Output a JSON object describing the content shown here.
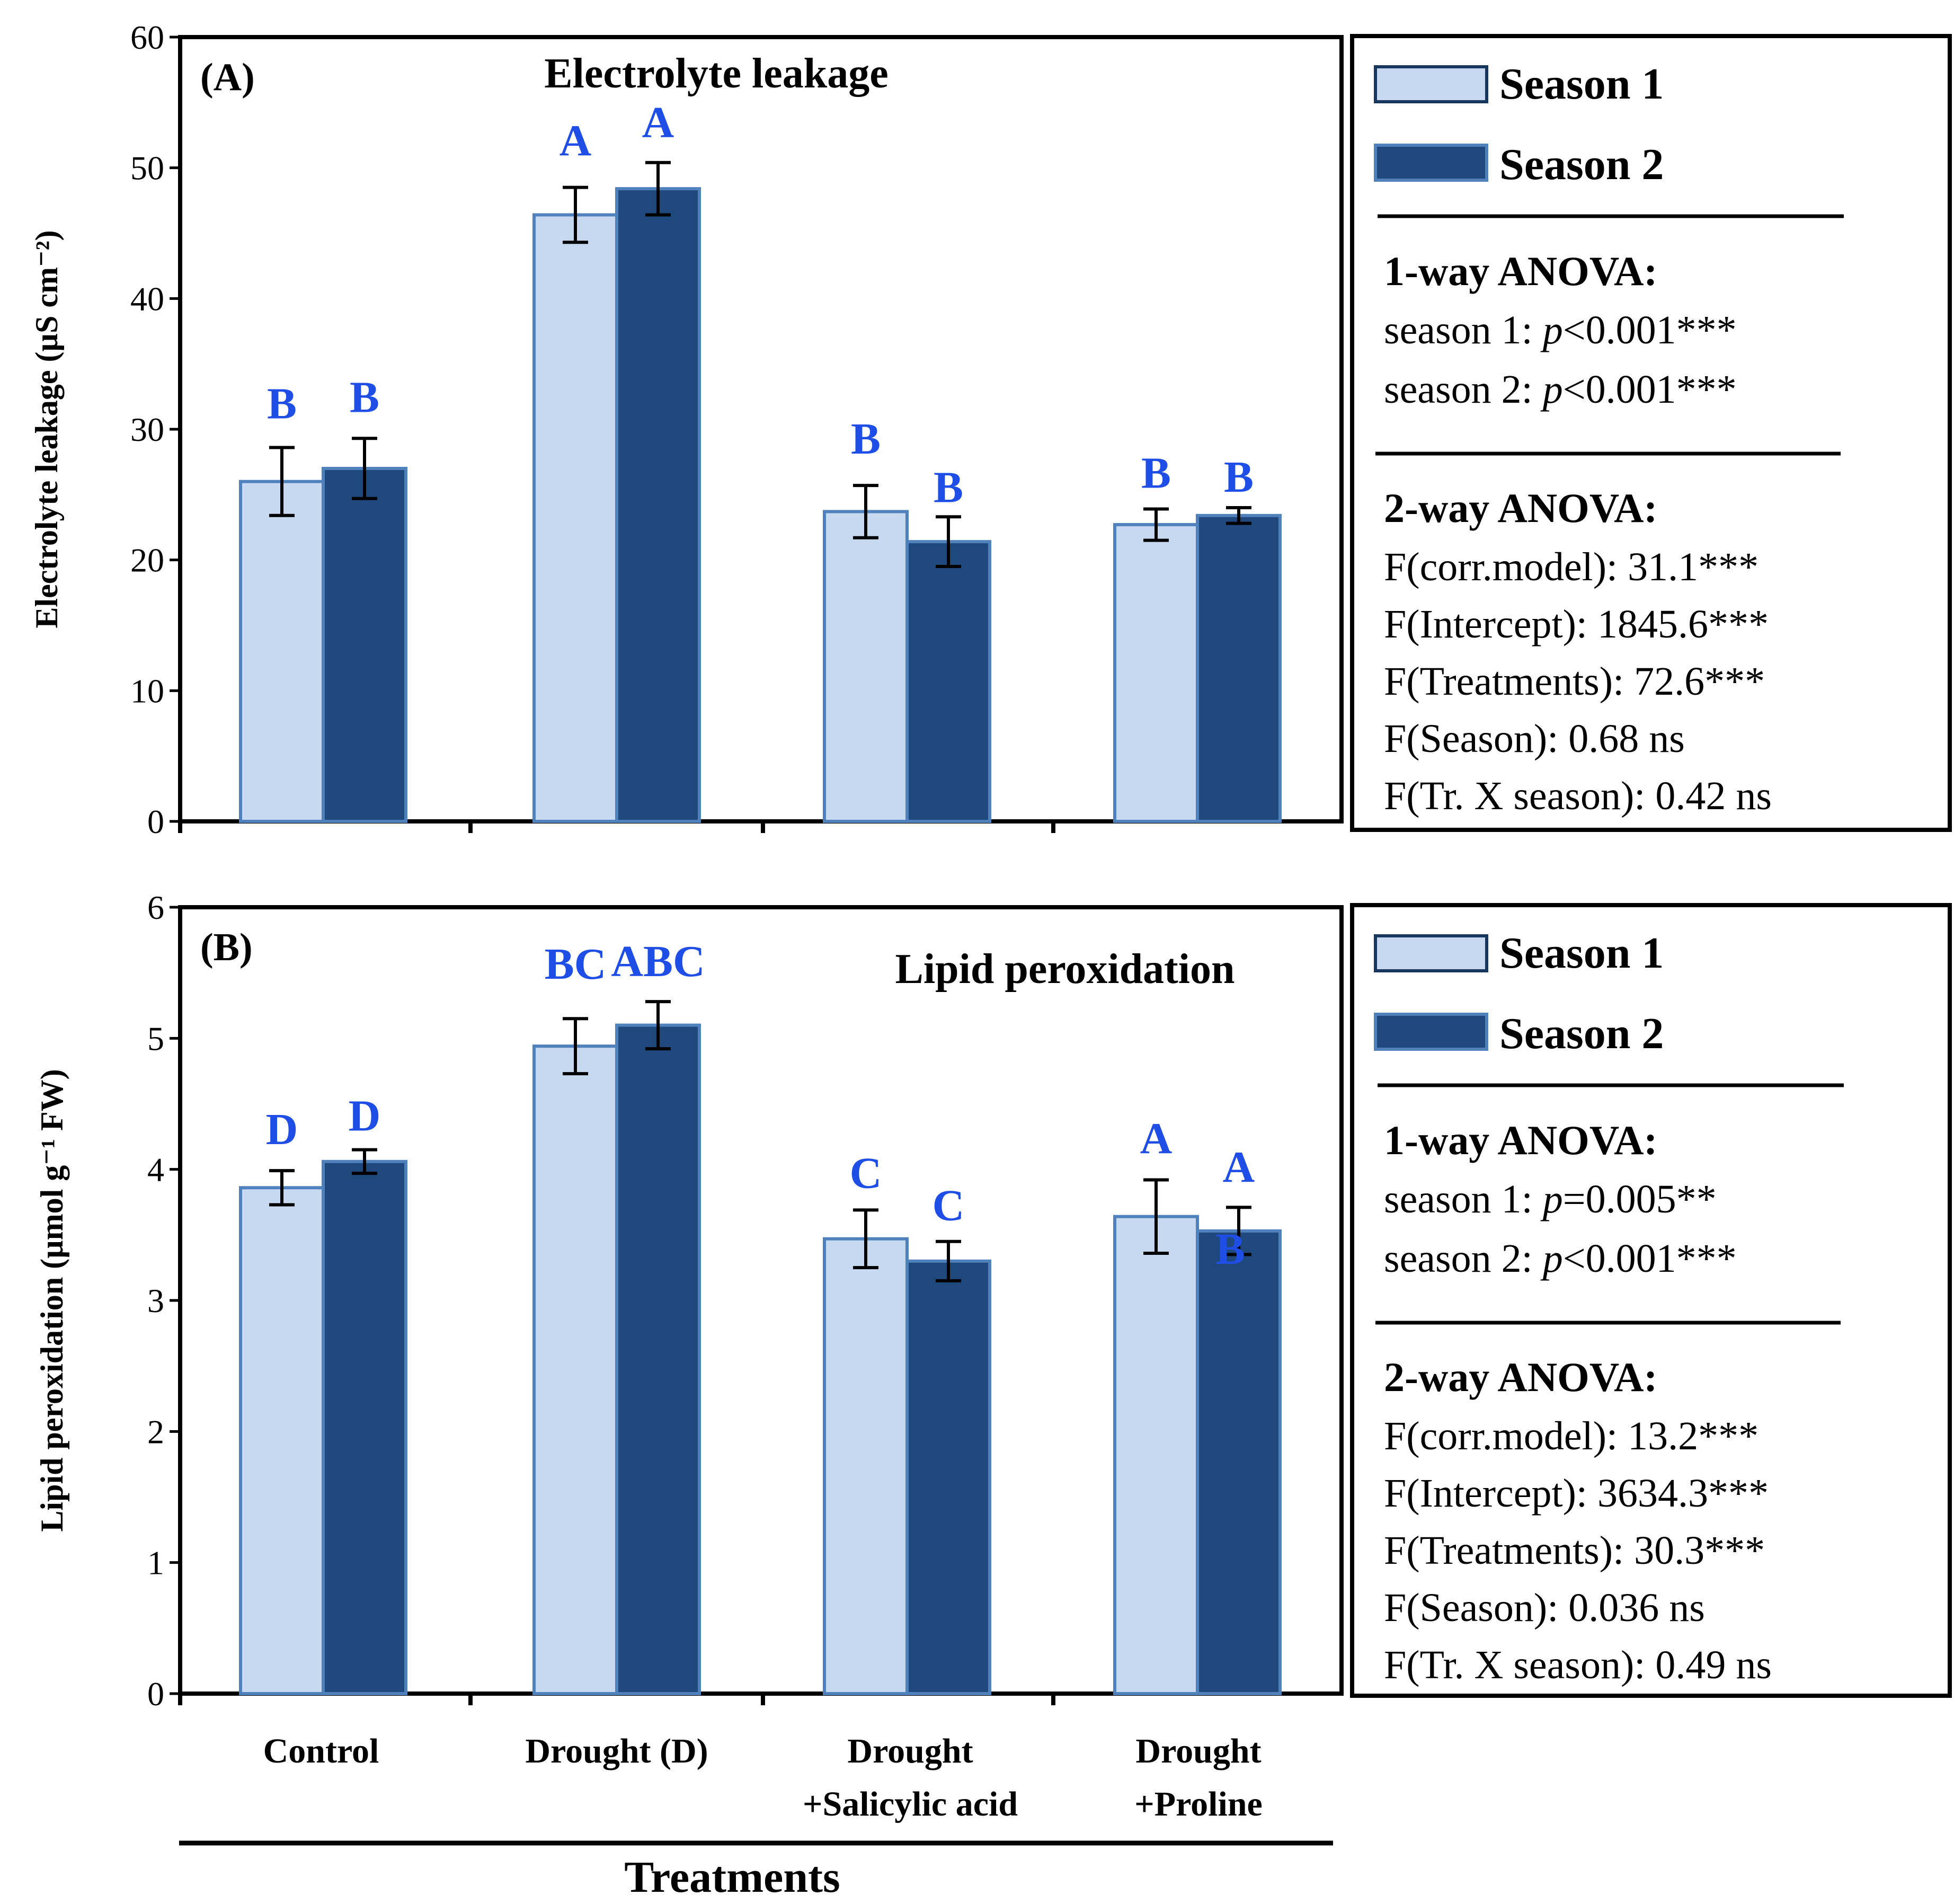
{
  "colors": {
    "season1_fill": "#c6d9f1",
    "season2_fill": "#1f497d",
    "bar_stroke": "#4f81bd",
    "letter": "#1f4ee6",
    "legend_s1_stroke": "#17375e"
  },
  "legend": {
    "season1": "Season 1",
    "season2": "Season 2"
  },
  "x_axis_label": "Treatments",
  "categories": [
    {
      "line1": "Control",
      "line2": ""
    },
    {
      "line1": "Drought (D)",
      "line2": ""
    },
    {
      "line1": "Drought",
      "line2": "+Salicylic acid"
    },
    {
      "line1": "Drought",
      "line2": "+Proline"
    }
  ],
  "chart_data": [
    {
      "type": "bar",
      "panel": "(A)",
      "title": "Electrolyte leakage",
      "ylabel": "Electrolyte leakage (µS cm⁻²)",
      "xlabel": "Treatments",
      "ylim": [
        0,
        60
      ],
      "yticks": [
        0,
        10,
        20,
        30,
        40,
        50,
        60
      ],
      "categories": [
        "Control",
        "Drought (D)",
        "Drought +Salicylic acid",
        "Drought +Proline"
      ],
      "series": [
        {
          "name": "Season 1",
          "values": [
            26.0,
            46.4,
            23.7,
            22.7
          ],
          "errors": [
            2.6,
            2.1,
            2.0,
            1.2
          ],
          "letters": [
            "B",
            "A",
            "B",
            "B"
          ]
        },
        {
          "name": "Season 2",
          "values": [
            27.0,
            48.4,
            21.4,
            23.4
          ],
          "errors": [
            2.3,
            2.0,
            1.9,
            0.6
          ],
          "letters": [
            "B",
            "A",
            "B",
            "B"
          ]
        }
      ],
      "stats": {
        "oneway_title": "1-way ANOVA:",
        "oneway": [
          {
            "prefix": "season 1: ",
            "p": "p",
            "rest": "<0.001***"
          },
          {
            "prefix": "season 2: ",
            "p": "p",
            "rest": "<0.001***"
          }
        ],
        "twoway_title": "2-way ANOVA:",
        "twoway": [
          "F(corr.model): 31.1***",
          "F(Intercept): 1845.6***",
          "F(Treatments): 72.6***",
          "F(Season): 0.68 ns",
          "F(Tr. X  season): 0.42 ns"
        ]
      }
    },
    {
      "type": "bar",
      "panel": "(B)",
      "title": "Lipid peroxidation",
      "ylabel": "Lipid peroxidation (µmol g⁻¹ FW)",
      "xlabel": "Treatments",
      "ylim": [
        0,
        6
      ],
      "yticks": [
        0,
        1,
        2,
        3,
        4,
        5,
        6
      ],
      "categories": [
        "Control",
        "Drought (D)",
        "Drought +Salicylic acid",
        "Drought +Proline"
      ],
      "series": [
        {
          "name": "Season 1",
          "values": [
            3.86,
            4.94,
            3.47,
            3.64
          ],
          "errors": [
            0.13,
            0.21,
            0.22,
            0.28
          ],
          "letters": [
            "D",
            "BC",
            "C",
            "A"
          ]
        },
        {
          "name": "Season 2",
          "values": [
            4.06,
            5.1,
            3.3,
            3.53
          ],
          "errors": [
            0.09,
            0.18,
            0.15,
            0.18
          ],
          "letters": [
            "D",
            "ABC",
            "C",
            "A"
          ]
        }
      ],
      "extra_letters": [
        {
          "category": 3,
          "series": 1,
          "text": "B"
        }
      ],
      "stats": {
        "oneway_title": "1-way ANOVA:",
        "oneway": [
          {
            "prefix": "season 1: ",
            "p": "p",
            "rest": "=0.005**"
          },
          {
            "prefix": "season 2: ",
            "p": "p",
            "rest": "<0.001***"
          }
        ],
        "twoway_title": "2-way ANOVA:",
        "twoway": [
          "F(corr.model): 13.2***",
          "F(Intercept): 3634.3***",
          "F(Treatments): 30.3***",
          "F(Season): 0.036 ns",
          "F(Tr. X  season): 0.49 ns"
        ]
      }
    }
  ]
}
